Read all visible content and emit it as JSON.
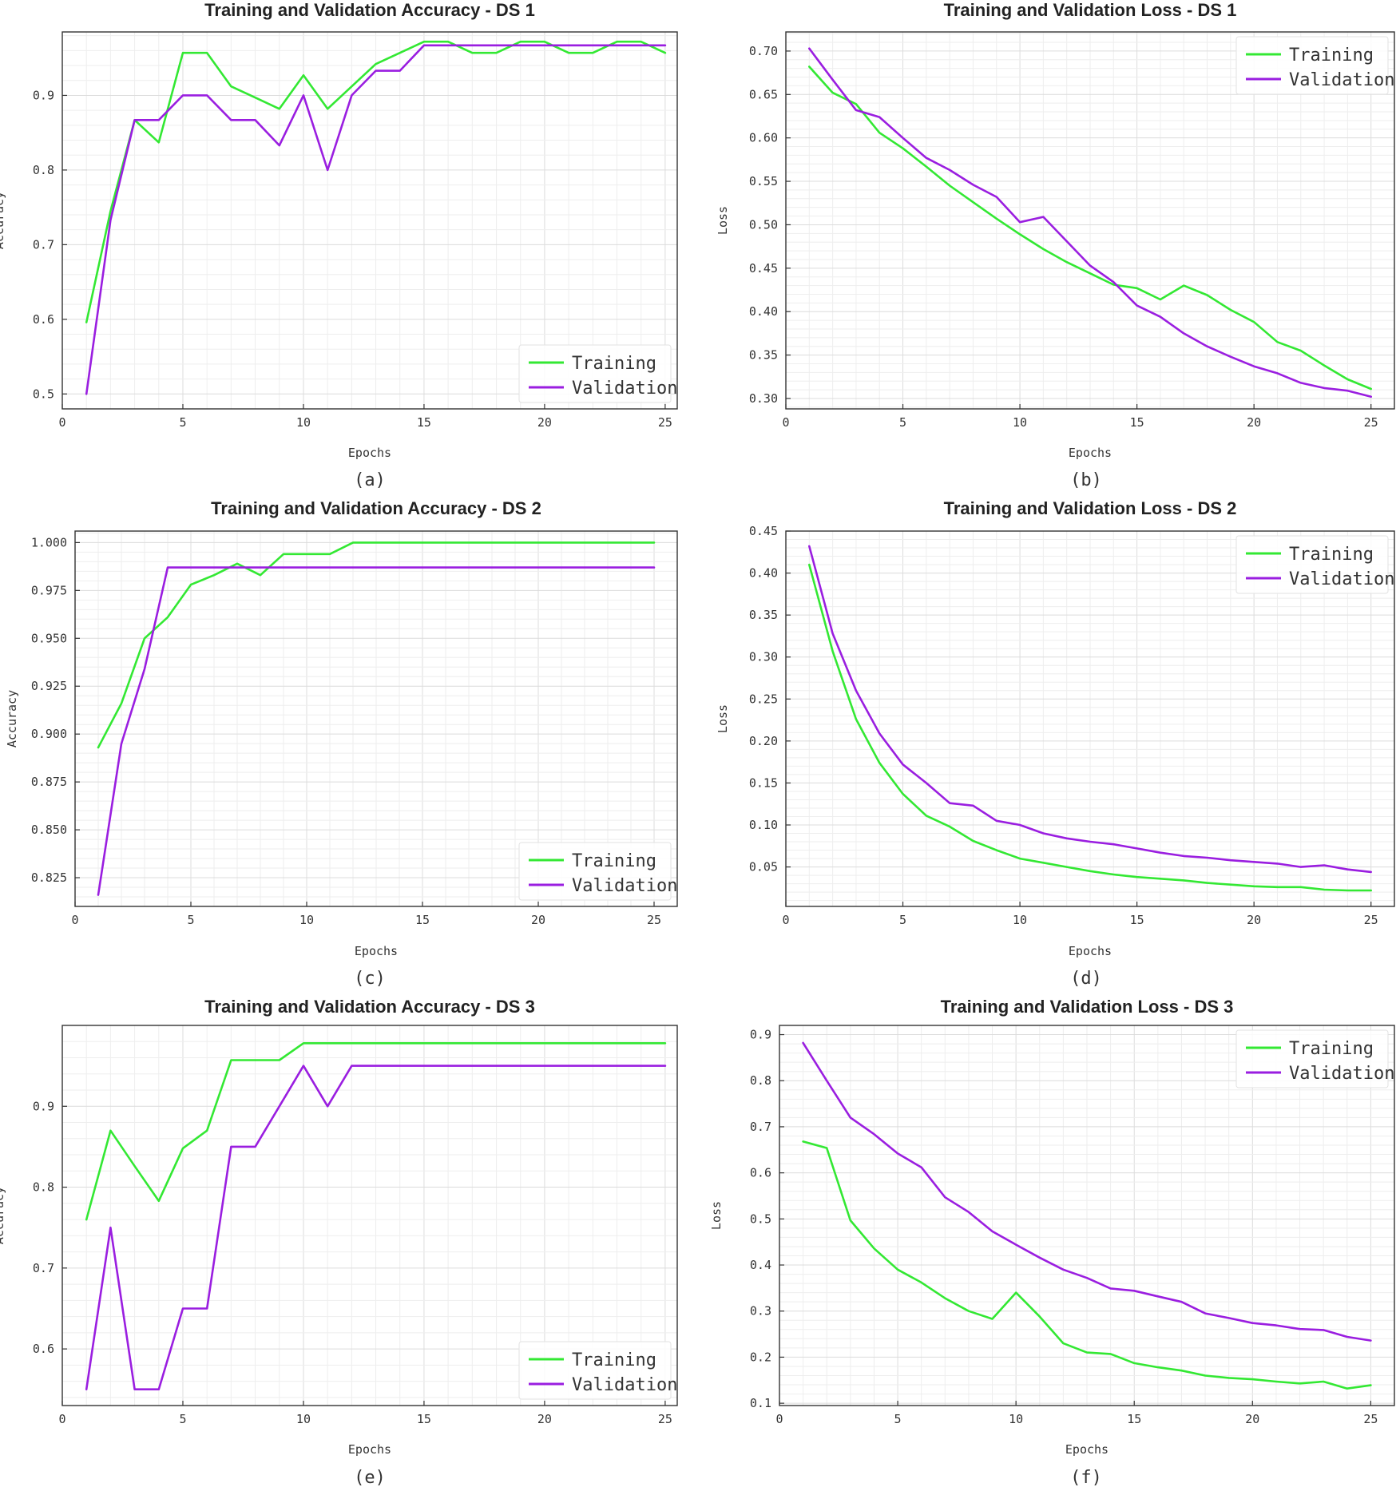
{
  "chart_data": [
    {
      "type": "line",
      "title": "Training and Validation Accuracy - DS 1",
      "xlabel": "Epochs",
      "ylabel": "Accuracy",
      "caption": "(a)",
      "xlim": [
        0,
        25.5
      ],
      "ylim": [
        0.48,
        0.985
      ],
      "xticks": [
        0,
        5,
        10,
        15,
        20,
        25
      ],
      "yticks": [
        0.5,
        0.6,
        0.7,
        0.8,
        0.9
      ],
      "ytick_labels": [
        "0.5",
        "0.6",
        "0.7",
        "0.8",
        "0.9"
      ],
      "grid": true,
      "legend_position": "bottom-right",
      "x": [
        1,
        2,
        3,
        4,
        5,
        6,
        7,
        8,
        9,
        10,
        11,
        12,
        13,
        14,
        15,
        16,
        17,
        18,
        19,
        20,
        21,
        22,
        23,
        24,
        25
      ],
      "series": [
        {
          "name": "Training",
          "color": "#33e833",
          "values": [
            0.596,
            0.745,
            0.867,
            0.837,
            0.957,
            0.957,
            0.912,
            0.897,
            0.882,
            0.927,
            0.882,
            0.912,
            0.942,
            0.957,
            0.972,
            0.972,
            0.957,
            0.957,
            0.972,
            0.972,
            0.957,
            0.957,
            0.972,
            0.972,
            0.957
          ]
        },
        {
          "name": "Validation",
          "color": "#9a1ee0",
          "values": [
            0.5,
            0.733,
            0.867,
            0.867,
            0.9,
            0.9,
            0.867,
            0.867,
            0.833,
            0.9,
            0.8,
            0.9,
            0.933,
            0.933,
            0.967,
            0.967,
            0.967,
            0.967,
            0.967,
            0.967,
            0.967,
            0.967,
            0.967,
            0.967,
            0.967
          ]
        }
      ]
    },
    {
      "type": "line",
      "title": "Training and Validation Loss - DS 1",
      "xlabel": "Epochs",
      "ylabel": "Loss",
      "caption": "(b)",
      "xlim": [
        0,
        26
      ],
      "ylim": [
        0.288,
        0.722
      ],
      "xticks": [
        0,
        5,
        10,
        15,
        20,
        25
      ],
      "yticks": [
        0.3,
        0.35,
        0.4,
        0.45,
        0.5,
        0.55,
        0.6,
        0.65,
        0.7
      ],
      "ytick_labels": [
        "0.30",
        "0.35",
        "0.40",
        "0.45",
        "0.50",
        "0.55",
        "0.60",
        "0.65",
        "0.70"
      ],
      "grid": true,
      "legend_position": "top-right",
      "x": [
        1,
        2,
        3,
        4,
        5,
        6,
        7,
        8,
        9,
        10,
        11,
        12,
        13,
        14,
        15,
        16,
        17,
        18,
        19,
        20,
        21,
        22,
        23,
        24,
        25
      ],
      "series": [
        {
          "name": "Training",
          "color": "#33e833",
          "values": [
            0.682,
            0.652,
            0.639,
            0.606,
            0.588,
            0.567,
            0.545,
            0.526,
            0.507,
            0.489,
            0.472,
            0.457,
            0.444,
            0.431,
            0.427,
            0.414,
            0.43,
            0.419,
            0.402,
            0.388,
            0.365,
            0.355,
            0.338,
            0.322,
            0.311
          ]
        },
        {
          "name": "Validation",
          "color": "#9a1ee0",
          "values": [
            0.703,
            0.667,
            0.632,
            0.624,
            0.6,
            0.577,
            0.563,
            0.546,
            0.532,
            0.503,
            0.509,
            0.481,
            0.453,
            0.434,
            0.407,
            0.394,
            0.375,
            0.36,
            0.348,
            0.337,
            0.329,
            0.318,
            0.312,
            0.309,
            0.302
          ]
        }
      ]
    },
    {
      "type": "line",
      "title": "Training and Validation Accuracy - DS 2",
      "xlabel": "Epochs",
      "ylabel": "Accuracy",
      "caption": "(c)",
      "xlim": [
        0,
        26
      ],
      "ylim": [
        0.81,
        1.006
      ],
      "xticks": [
        0,
        5,
        10,
        15,
        20,
        25
      ],
      "yticks": [
        0.825,
        0.85,
        0.875,
        0.9,
        0.925,
        0.95,
        0.975,
        1.0
      ],
      "ytick_labels": [
        "0.825",
        "0.850",
        "0.875",
        "0.900",
        "0.925",
        "0.950",
        "0.975",
        "1.000"
      ],
      "grid": true,
      "legend_position": "bottom-right",
      "x": [
        1,
        2,
        3,
        4,
        5,
        6,
        7,
        8,
        9,
        10,
        11,
        12,
        13,
        14,
        15,
        16,
        17,
        18,
        19,
        20,
        21,
        22,
        23,
        24,
        25
      ],
      "series": [
        {
          "name": "Training",
          "color": "#33e833",
          "values": [
            0.893,
            0.916,
            0.95,
            0.961,
            0.978,
            0.983,
            0.989,
            0.983,
            0.994,
            0.994,
            0.994,
            1.0,
            1.0,
            1.0,
            1.0,
            1.0,
            1.0,
            1.0,
            1.0,
            1.0,
            1.0,
            1.0,
            1.0,
            1.0,
            1.0
          ]
        },
        {
          "name": "Validation",
          "color": "#9a1ee0",
          "values": [
            0.816,
            0.895,
            0.934,
            0.987,
            0.987,
            0.987,
            0.987,
            0.987,
            0.987,
            0.987,
            0.987,
            0.987,
            0.987,
            0.987,
            0.987,
            0.987,
            0.987,
            0.987,
            0.987,
            0.987,
            0.987,
            0.987,
            0.987,
            0.987,
            0.987
          ]
        }
      ]
    },
    {
      "type": "line",
      "title": "Training and Validation Loss - DS 2",
      "xlabel": "Epochs",
      "ylabel": "Loss",
      "caption": "(d)",
      "xlim": [
        0,
        26
      ],
      "ylim": [
        0.003,
        0.45
      ],
      "xticks": [
        0,
        5,
        10,
        15,
        20,
        25
      ],
      "yticks": [
        0.05,
        0.1,
        0.15,
        0.2,
        0.25,
        0.3,
        0.35,
        0.4,
        0.45
      ],
      "ytick_labels": [
        "0.05",
        "0.10",
        "0.15",
        "0.20",
        "0.25",
        "0.30",
        "0.35",
        "0.40",
        "0.45"
      ],
      "grid": true,
      "legend_position": "top-right",
      "x": [
        1,
        2,
        3,
        4,
        5,
        6,
        7,
        8,
        9,
        10,
        11,
        12,
        13,
        14,
        15,
        16,
        17,
        18,
        19,
        20,
        21,
        22,
        23,
        24,
        25
      ],
      "series": [
        {
          "name": "Training",
          "color": "#33e833",
          "values": [
            0.41,
            0.307,
            0.226,
            0.174,
            0.137,
            0.111,
            0.098,
            0.081,
            0.07,
            0.06,
            0.055,
            0.05,
            0.045,
            0.041,
            0.038,
            0.036,
            0.034,
            0.031,
            0.029,
            0.027,
            0.026,
            0.026,
            0.023,
            0.022,
            0.022
          ]
        },
        {
          "name": "Validation",
          "color": "#9a1ee0",
          "values": [
            0.432,
            0.328,
            0.26,
            0.209,
            0.172,
            0.15,
            0.126,
            0.123,
            0.105,
            0.1,
            0.09,
            0.084,
            0.08,
            0.077,
            0.072,
            0.067,
            0.063,
            0.061,
            0.058,
            0.056,
            0.054,
            0.05,
            0.052,
            0.047,
            0.044
          ]
        }
      ]
    },
    {
      "type": "line",
      "title": "Training and Validation Accuracy - DS 3",
      "xlabel": "Epochs",
      "ylabel": "Accuracy",
      "caption": "(e)",
      "xlim": [
        0,
        25.5
      ],
      "ylim": [
        0.53,
        1.0
      ],
      "xticks": [
        0,
        5,
        10,
        15,
        20,
        25
      ],
      "yticks": [
        0.6,
        0.7,
        0.8,
        0.9
      ],
      "ytick_labels": [
        "0.6",
        "0.7",
        "0.8",
        "0.9"
      ],
      "grid": true,
      "legend_position": "bottom-right",
      "x": [
        1,
        2,
        3,
        4,
        5,
        6,
        7,
        8,
        9,
        10,
        11,
        12,
        13,
        14,
        15,
        16,
        17,
        18,
        19,
        20,
        21,
        22,
        23,
        24,
        25
      ],
      "series": [
        {
          "name": "Training",
          "color": "#33e833",
          "values": [
            0.76,
            0.87,
            0.826,
            0.783,
            0.848,
            0.87,
            0.957,
            0.957,
            0.957,
            0.978,
            0.978,
            0.978,
            0.978,
            0.978,
            0.978,
            0.978,
            0.978,
            0.978,
            0.978,
            0.978,
            0.978,
            0.978,
            0.978,
            0.978,
            0.978
          ]
        },
        {
          "name": "Validation",
          "color": "#9a1ee0",
          "values": [
            0.55,
            0.75,
            0.55,
            0.55,
            0.65,
            0.65,
            0.85,
            0.85,
            0.9,
            0.95,
            0.9,
            0.95,
            0.95,
            0.95,
            0.95,
            0.95,
            0.95,
            0.95,
            0.95,
            0.95,
            0.95,
            0.95,
            0.95,
            0.95,
            0.95
          ]
        }
      ]
    },
    {
      "type": "line",
      "title": "Training and Validation Loss - DS 3",
      "xlabel": "Epochs",
      "ylabel": "Loss",
      "caption": "(f)",
      "xlim": [
        0,
        26
      ],
      "ylim": [
        0.095,
        0.92
      ],
      "xticks": [
        0,
        5,
        10,
        15,
        20,
        25
      ],
      "yticks": [
        0.1,
        0.2,
        0.3,
        0.4,
        0.5,
        0.6,
        0.7,
        0.8,
        0.9
      ],
      "ytick_labels": [
        "0.1",
        "0.2",
        "0.3",
        "0.4",
        "0.5",
        "0.6",
        "0.7",
        "0.8",
        "0.9"
      ],
      "grid": true,
      "legend_position": "top-right",
      "x": [
        1,
        2,
        3,
        4,
        5,
        6,
        7,
        8,
        9,
        10,
        11,
        12,
        13,
        14,
        15,
        16,
        17,
        18,
        19,
        20,
        21,
        22,
        23,
        24,
        25
      ],
      "series": [
        {
          "name": "Training",
          "color": "#33e833",
          "values": [
            0.668,
            0.654,
            0.497,
            0.436,
            0.39,
            0.362,
            0.328,
            0.3,
            0.283,
            0.34,
            0.288,
            0.23,
            0.21,
            0.207,
            0.187,
            0.178,
            0.171,
            0.16,
            0.155,
            0.152,
            0.147,
            0.143,
            0.147,
            0.132,
            0.139
          ]
        },
        {
          "name": "Validation",
          "color": "#9a1ee0",
          "values": [
            0.882,
            0.8,
            0.72,
            0.684,
            0.642,
            0.612,
            0.547,
            0.515,
            0.473,
            0.444,
            0.416,
            0.39,
            0.372,
            0.349,
            0.344,
            0.332,
            0.32,
            0.295,
            0.285,
            0.274,
            0.269,
            0.261,
            0.259,
            0.244,
            0.236
          ]
        }
      ]
    }
  ]
}
